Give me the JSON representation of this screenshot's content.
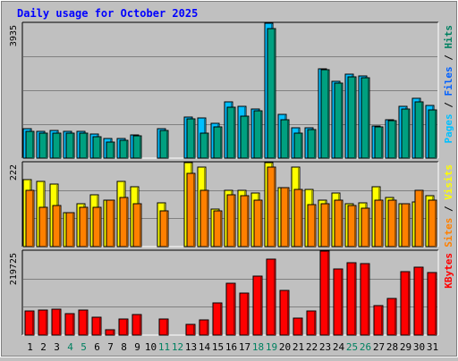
{
  "chart_data": {
    "title": "Daily usage for October 2025",
    "x": [
      "1",
      "2",
      "3",
      "4",
      "5",
      "6",
      "7",
      "8",
      "9",
      "10",
      "11",
      "12",
      "13",
      "14",
      "15",
      "16",
      "17",
      "18",
      "19",
      "20",
      "21",
      "22",
      "23",
      "24",
      "25",
      "26",
      "27",
      "28",
      "29",
      "30",
      "31"
    ],
    "weekend_days": [
      "4",
      "5",
      "11",
      "12",
      "18",
      "19",
      "25",
      "26"
    ],
    "colors": {
      "title": "#0000ff",
      "weekday_label": "#000000",
      "weekend_label": "#008060",
      "hits": "#00c0ff",
      "files": "#00a080",
      "pages": "#008040",
      "visits": "#ffff00",
      "sites": "#ff8000",
      "kbytes": "#ff0000",
      "plot_bg": "#c0c0c0",
      "gridline": "#808080"
    },
    "charts": [
      {
        "type": "bar",
        "name": "top",
        "max_label": "3935",
        "ymax": 3935,
        "legend": [
          {
            "text": "Pages",
            "color": "#00c0ff"
          },
          {
            "text": " / ",
            "color": "#000000"
          },
          {
            "text": "Files",
            "color": "#0060ff"
          },
          {
            "text": " / ",
            "color": "#000000"
          },
          {
            "text": "Hits",
            "color": "#008060"
          }
        ],
        "series": [
          {
            "name": "Hits",
            "values": [
              870,
              800,
              820,
              800,
              800,
              730,
              600,
              590,
              700,
              0,
              870,
              0,
              1220,
              1190,
              1030,
              1650,
              1540,
              1460,
              3935,
              1300,
              900,
              900,
              2620,
              2250,
              2460,
              2420,
              950,
              1140,
              1540,
              1770,
              1560
            ]
          },
          {
            "name": "Files",
            "values": [
              790,
              740,
              760,
              740,
              760,
              660,
              480,
              550,
              680,
              0,
              830,
              0,
              1170,
              740,
              940,
              1500,
              1250,
              1390,
              3780,
              1130,
              740,
              860,
              2600,
              2190,
              2380,
              2350,
              920,
              1110,
              1440,
              1660,
              1420
            ]
          }
        ]
      },
      {
        "type": "bar",
        "name": "middle",
        "max_label": "222",
        "ymax": 222,
        "legend": [
          {
            "text": "Sites",
            "color": "#ff8000"
          },
          {
            "text": " / ",
            "color": "#000000"
          },
          {
            "text": "Visits",
            "color": "#ffff00"
          }
        ],
        "series": [
          {
            "name": "Visits",
            "values": [
              178,
              172,
              165,
              90,
              115,
              137,
              125,
              172,
              160,
              0,
              118,
              0,
              222,
              210,
              100,
              150,
              150,
              142,
              222,
              157,
              210,
              152,
              125,
              142,
              115,
              117,
              160,
              130,
              115,
              120,
              135
            ]
          },
          {
            "name": "Sites",
            "values": [
              150,
              105,
              110,
              90,
              105,
              105,
              125,
              130,
              115,
              0,
              95,
              0,
              195,
              150,
              95,
              137,
              135,
              125,
              210,
              157,
              152,
              112,
              115,
              125,
              110,
              102,
              125,
              125,
              115,
              150,
              125
            ]
          }
        ]
      },
      {
        "type": "bar",
        "name": "bottom",
        "max_label": "219725",
        "ymax": 219725,
        "legend": [
          {
            "text": "KBytes",
            "color": "#ff0000"
          }
        ],
        "series": [
          {
            "name": "KBytes",
            "values": [
              65000,
              67000,
              70000,
              58000,
              66000,
              49000,
              17000,
              45000,
              55000,
              0,
              45000,
              0,
              31000,
              41000,
              85000,
              137000,
              112000,
              155000,
              198000,
              119000,
              47000,
              65000,
              219725,
              174000,
              190000,
              188000,
              78000,
              98000,
              167000,
              177000,
              165000
            ]
          }
        ]
      }
    ]
  }
}
